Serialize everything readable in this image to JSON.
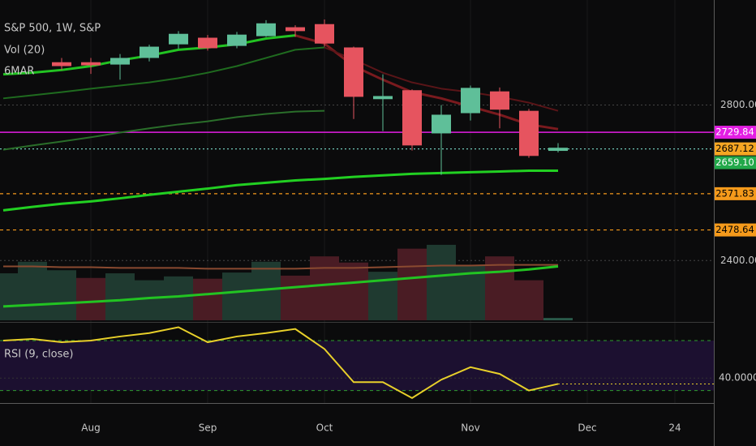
{
  "chart_data": [
    {
      "type": "candlestick",
      "title": "S&P 500, 1W, S&P",
      "indicator_label": "6MAR",
      "categories": [
        null,
        null,
        null,
        "Aug",
        null,
        null,
        null,
        "Sep",
        null,
        null,
        null,
        "Oct",
        null,
        null,
        null,
        null,
        "Nov",
        null,
        null,
        null,
        "Dec",
        null,
        null,
        "24"
      ],
      "open": [
        null,
        null,
        2910,
        2910,
        2904,
        2921,
        2956,
        2973,
        2952,
        2977,
        3000,
        3008,
        2948,
        2815,
        2838,
        2727,
        2779,
        2835,
        2785,
        2682,
        null,
        null,
        null,
        null
      ],
      "high": [
        null,
        null,
        2921,
        2921,
        2931,
        2955,
        2990,
        2980,
        2988,
        3018,
        3005,
        3020,
        2950,
        2879,
        2840,
        2800,
        2850,
        2845,
        2790,
        2702,
        null,
        null,
        null,
        null
      ],
      "low": [
        null,
        null,
        2890,
        2880,
        2865,
        2912,
        2945,
        2940,
        2946,
        2975,
        2975,
        2950,
        2764,
        2733,
        2683,
        2620,
        2760,
        2740,
        2664,
        2678,
        null,
        null,
        null,
        null
      ],
      "close": [
        null,
        null,
        2900,
        2902,
        2921,
        2950,
        2983,
        2946,
        2981,
        3010,
        2990,
        2958,
        2821,
        2823,
        2696,
        2775,
        2844,
        2788,
        2669,
        2690,
        null,
        null,
        null,
        null
      ],
      "up_color": "#5fbf99",
      "down_color": "#e6545f",
      "overlays": [
        {
          "color": "#22c322",
          "width": 3,
          "values": [
            2879,
            2883,
            2890,
            2900,
            2915,
            2927,
            2942,
            2948,
            2956,
            2971,
            2979,
            null,
            null,
            null,
            null,
            null,
            null,
            null,
            null,
            null,
            null,
            null,
            null,
            null
          ]
        },
        {
          "color": "#7a1a1e",
          "width": 3,
          "values": [
            null,
            null,
            null,
            null,
            null,
            null,
            null,
            null,
            null,
            null,
            2979,
            2958,
            2900,
            2865,
            2833,
            2817,
            2796,
            2775,
            2750,
            2738,
            null,
            null,
            null,
            null
          ]
        },
        {
          "color": "#1f6b1f",
          "width": 2,
          "values": [
            2817,
            2825,
            2833,
            2842,
            2850,
            2858,
            2869,
            2883,
            2900,
            2921,
            2942,
            2948,
            null,
            null,
            null,
            null,
            null,
            null,
            null,
            null,
            null,
            null,
            null,
            null
          ]
        },
        {
          "color": "#5a1518",
          "width": 2,
          "values": [
            null,
            null,
            null,
            null,
            null,
            null,
            null,
            null,
            null,
            null,
            null,
            2948,
            2917,
            2883,
            2858,
            2842,
            2833,
            2821,
            2806,
            2785,
            null,
            null,
            null,
            null
          ]
        },
        {
          "color": "#2a6e2a",
          "width": 2,
          "values": [
            2685,
            2696,
            2706,
            2717,
            2729,
            2740,
            2750,
            2758,
            2769,
            2777,
            2783,
            2785,
            null,
            null,
            null,
            null,
            null,
            null,
            null,
            null,
            null,
            null,
            null,
            null
          ]
        },
        {
          "color": "#22d022",
          "width": 3,
          "values": [
            2529,
            2538,
            2546,
            2552,
            2560,
            2569,
            2577,
            2585,
            2594,
            2600,
            2606,
            2610,
            2615,
            2619,
            2623,
            2625,
            2627,
            2629,
            2631,
            2631,
            null,
            null,
            null,
            null
          ]
        }
      ],
      "levels": [
        {
          "value": 2729.84,
          "color": "#e31ee3",
          "text_color": "#ffffff",
          "style": "solid"
        },
        {
          "value": 2687.12,
          "color": "#f5a623",
          "text_color": "#000000",
          "style": "dotted"
        },
        {
          "value": 2659.1,
          "label": "2659.10",
          "color": "#22a84a",
          "text_color": "#ffffff",
          "style": "none"
        },
        {
          "value": 2571.83,
          "color": "#f59a1b",
          "text_color": "#000000",
          "style": "dashed"
        },
        {
          "value": 2478.64,
          "color": "#f59a1b",
          "text_color": "#000000",
          "style": "dashed"
        }
      ],
      "ylim": [
        2240,
        3070
      ],
      "yticks": [
        {
          "value": 2800,
          "label": "2800.00"
        },
        {
          "value": 2400,
          "label": "2400.00"
        }
      ],
      "grid": true
    },
    {
      "type": "bar",
      "title": "Vol (20)",
      "values": [
        61,
        76,
        65,
        55,
        61,
        52,
        57,
        54,
        62,
        76,
        58,
        83,
        75,
        63,
        93,
        98,
        72,
        83,
        52,
        3,
        null,
        null,
        null,
        null
      ],
      "colors": [
        "#1f3a30",
        "#1f3a30",
        "#1f3a30",
        "#4a1c24",
        "#1f3a30",
        "#1f3a30",
        "#1f3a30",
        "#4a1c24",
        "#1f3a30",
        "#1f3a30",
        "#4a1c24",
        "#4a1c24",
        "#4a1c24",
        "#1f3a30",
        "#4a1c24",
        "#1f3a30",
        "#1f3a30",
        "#4a1c24",
        "#4a1c24",
        "#2a5a4a",
        null,
        null,
        null,
        null
      ],
      "overlays": [
        {
          "color": "#8a4a30",
          "width": 2,
          "values": [
            70,
            70,
            69,
            69,
            68,
            68,
            68,
            67,
            67,
            67,
            67,
            68,
            68,
            69,
            70,
            71,
            71,
            72,
            72,
            72,
            null,
            null,
            null,
            null
          ]
        },
        {
          "color": "#22c322",
          "width": 3,
          "values": [
            18,
            20,
            22,
            24,
            26,
            29,
            31,
            34,
            37,
            40,
            43,
            46,
            49,
            52,
            55,
            58,
            61,
            63,
            66,
            70,
            null,
            null,
            null,
            null
          ]
        }
      ],
      "ylim": [
        0,
        100
      ]
    },
    {
      "type": "line",
      "title": "RSI (9, close)",
      "values": [
        70,
        71.3,
        68.7,
        70,
        73.3,
        76,
        80.7,
        68.7,
        73.3,
        76,
        79.3,
        63.3,
        36.7,
        36.7,
        24,
        38.7,
        48.7,
        43.3,
        30,
        35.3,
        null,
        null,
        null,
        null
      ],
      "color": "#e8d02a",
      "band": [
        30,
        70
      ],
      "band_color": "#1c1030",
      "band_line_color": "#2e9e2e",
      "ylim": [
        20,
        83
      ],
      "yticks": [
        {
          "value": 40,
          "label": "40.0000"
        }
      ]
    }
  ]
}
